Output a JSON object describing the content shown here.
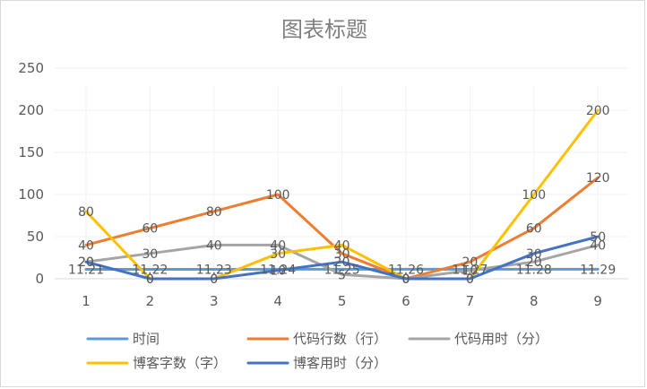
{
  "chart_data": {
    "type": "line",
    "title": "图表标题",
    "categories": [
      "1",
      "2",
      "3",
      "4",
      "5",
      "6",
      "7",
      "8",
      "9"
    ],
    "ylim": [
      0,
      250
    ],
    "y_ticks": [
      "0",
      "50",
      "100",
      "150",
      "200",
      "250"
    ],
    "grid": true,
    "legend_position": "bottom",
    "series": [
      {
        "name": "时间",
        "color": "#5b9bd5",
        "values": [
          11.21,
          11.22,
          11.23,
          11.24,
          11.25,
          11.26,
          11.27,
          11.28,
          11.29
        ],
        "labels": [
          "11.21",
          "11.22",
          "11.23",
          "11.24",
          "11.25",
          "11.26",
          "11.27",
          "11.28",
          "11.29"
        ]
      },
      {
        "name": "代码行数（行）",
        "color": "#ed7d31",
        "values": [
          40,
          60,
          80,
          100,
          30,
          0,
          20,
          60,
          120
        ],
        "labels": [
          "40",
          "60",
          "80",
          "100",
          "30",
          "0",
          "20",
          "60",
          "120"
        ]
      },
      {
        "name": "代码用时（分）",
        "color": "#a5a5a5",
        "values": [
          20,
          30,
          40,
          40,
          5,
          0,
          10,
          20,
          40
        ],
        "labels": [
          "20",
          "30",
          "40",
          "40",
          "5",
          "0",
          "10",
          "20",
          "40"
        ]
      },
      {
        "name": "博客字数（字）",
        "color": "#ffc000",
        "values": [
          80,
          0,
          0,
          30,
          40,
          0,
          0,
          100,
          200
        ],
        "labels": [
          "80",
          "0",
          "0",
          "30",
          "40",
          "0",
          "0",
          "100",
          "200"
        ]
      },
      {
        "name": "博客用时（分）",
        "color": "#4472c4",
        "values": [
          20,
          0,
          0,
          10,
          20,
          0,
          0,
          30,
          50
        ],
        "labels": [
          "20",
          "0",
          "0",
          "10",
          "20",
          "0",
          "0",
          "30",
          "50"
        ]
      }
    ]
  }
}
